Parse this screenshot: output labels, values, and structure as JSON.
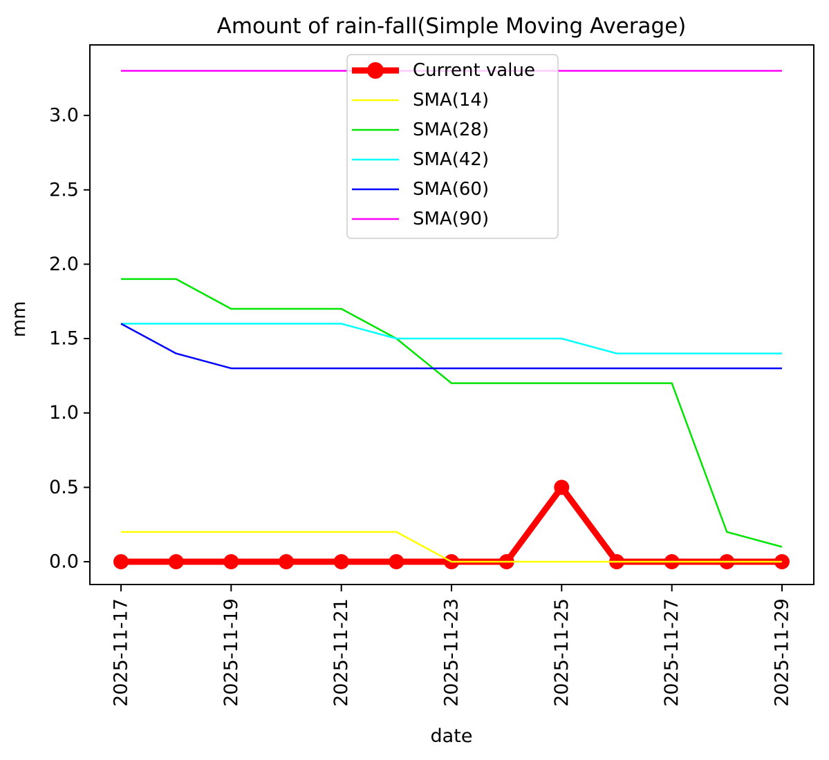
{
  "figure": {
    "background": "#ffffff"
  },
  "chart_data": {
    "type": "line",
    "title": "Amount of rain-fall(Simple Moving Average)",
    "xlabel": "date",
    "ylabel": "mm",
    "x": [
      "2025-11-17",
      "2025-11-18",
      "2025-11-19",
      "2025-11-20",
      "2025-11-21",
      "2025-11-22",
      "2025-11-23",
      "2025-11-24",
      "2025-11-25",
      "2025-11-26",
      "2025-11-27",
      "2025-11-28",
      "2025-11-29"
    ],
    "x_major_tick_every": 2,
    "x_tick_labels": [
      "2025-11-17",
      "2025-11-19",
      "2025-11-21",
      "2025-11-23",
      "2025-11-25",
      "2025-11-27",
      "2025-11-29"
    ],
    "y_ticks": [
      0.0,
      0.5,
      1.0,
      1.5,
      2.0,
      2.5,
      3.0
    ],
    "ylim": [
      -0.165,
      3.465
    ],
    "grid": false,
    "legend_position": "upper center inside",
    "legend_border_color": "#cccccc",
    "series": [
      {
        "name": "Current value",
        "color": "#ff0000",
        "linewidth": 9,
        "marker": "circle",
        "marker_radius": 11,
        "values": [
          0.0,
          0.0,
          0.0,
          0.0,
          0.0,
          0.0,
          0.0,
          0.0,
          0.5,
          0.0,
          0.0,
          0.0,
          0.0
        ]
      },
      {
        "name": "SMA(14)",
        "color": "#ffff00",
        "linewidth": 2.5,
        "values": [
          0.2,
          0.2,
          0.2,
          0.2,
          0.2,
          0.2,
          0.0,
          0.0,
          0.0,
          0.0,
          0.0,
          0.0,
          0.0
        ]
      },
      {
        "name": "SMA(28)",
        "color": "#00e400",
        "linewidth": 2.5,
        "values": [
          1.9,
          1.9,
          1.7,
          1.7,
          1.7,
          1.5,
          1.2,
          1.2,
          1.2,
          1.2,
          1.2,
          0.2,
          0.1
        ]
      },
      {
        "name": "SMA(42)",
        "color": "#00ffff",
        "linewidth": 2.5,
        "values": [
          1.6,
          1.6,
          1.6,
          1.6,
          1.6,
          1.5,
          1.5,
          1.5,
          1.5,
          1.4,
          1.4,
          1.4,
          1.4
        ]
      },
      {
        "name": "SMA(60)",
        "color": "#0000ff",
        "linewidth": 2.5,
        "values": [
          1.6,
          1.4,
          1.3,
          1.3,
          1.3,
          1.3,
          1.3,
          1.3,
          1.3,
          1.3,
          1.3,
          1.3,
          1.3
        ]
      },
      {
        "name": "SMA(90)",
        "color": "#ff00ff",
        "linewidth": 2.5,
        "values": [
          3.3,
          3.3,
          3.3,
          3.3,
          3.3,
          3.3,
          3.3,
          3.3,
          3.3,
          3.3,
          3.3,
          3.3,
          3.3
        ]
      }
    ]
  }
}
